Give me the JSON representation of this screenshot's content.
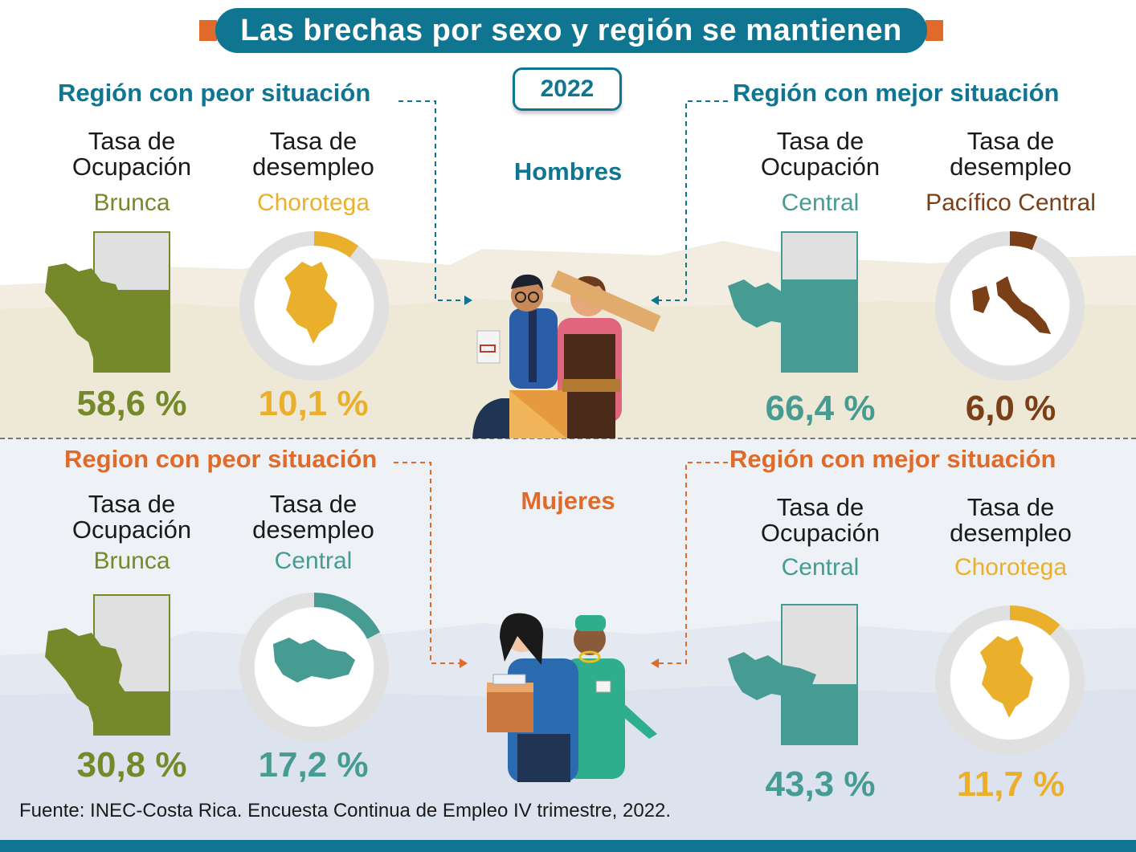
{
  "title": "Las brechas por sexo y región se mantienen",
  "year": "2022",
  "colors": {
    "teal": "#0f7590",
    "orange": "#e06a2a",
    "olive": "#76892a",
    "gold": "#eab02c",
    "sea": "#469b92",
    "brown": "#7a3f17"
  },
  "men": {
    "label": "Hombres",
    "worst_heading": "Región con peor situación",
    "best_heading": "Región con mejor situación",
    "worst": {
      "occupation_label": "Tasa de Ocupación",
      "occupation_region": "Brunca",
      "occupation_value": "58,6 %",
      "occupation_pct": 58.6,
      "unemployment_label": "Tasa de desempleo",
      "unemployment_region": "Chorotega",
      "unemployment_value": "10,1 %",
      "unemployment_pct": 10.1
    },
    "best": {
      "occupation_label": "Tasa de Ocupación",
      "occupation_region": "Central",
      "occupation_value": "66,4 %",
      "occupation_pct": 66.4,
      "unemployment_label": "Tasa de desempleo",
      "unemployment_region": "Pacífico Central",
      "unemployment_value": "6,0 %",
      "unemployment_pct": 6.0
    }
  },
  "women": {
    "label": "Mujeres",
    "worst_heading": "Region con peor situación",
    "best_heading": "Región con mejor situación",
    "worst": {
      "occupation_label": "Tasa de Ocupación",
      "occupation_region": "Brunca",
      "occupation_value": "30,8 %",
      "occupation_pct": 30.8,
      "unemployment_label": "Tasa de desempleo",
      "unemployment_region": "Central",
      "unemployment_value": "17,2 %",
      "unemployment_pct": 17.2
    },
    "best": {
      "occupation_label": "Tasa de Ocupación",
      "occupation_region": "Central",
      "occupation_value": "43,3 %",
      "occupation_pct": 43.3,
      "unemployment_label": "Tasa de desempleo",
      "unemployment_region": "Chorotega",
      "unemployment_value": "11,7 %",
      "unemployment_pct": 11.7
    }
  },
  "source": "Fuente:  INEC-Costa Rica. Encuesta Continua de Empleo IV trimestre, 2022."
}
